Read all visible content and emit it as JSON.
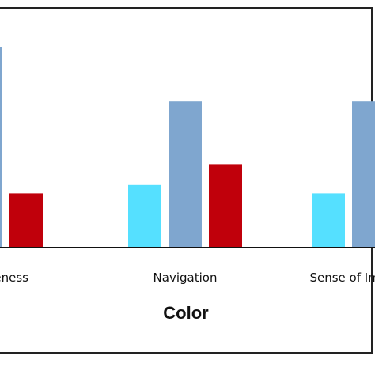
{
  "chart_data": {
    "type": "bar",
    "categories": [
      "Attractiveness",
      "Navigation",
      "Sense of Immersion"
    ],
    "series": [
      {
        "color": "#55e0ff",
        "values": [
          null,
          1.5,
          1.3
        ]
      },
      {
        "color": "#7fa6cf",
        "values": [
          4.8,
          3.5,
          3.5
        ]
      },
      {
        "color": "#c0000b",
        "values": [
          1.3,
          2.0,
          null
        ]
      }
    ],
    "xlabel": "Color",
    "ylabel": "",
    "title": "",
    "ylim": [
      0,
      5
    ],
    "grid": false,
    "legend": "none"
  }
}
